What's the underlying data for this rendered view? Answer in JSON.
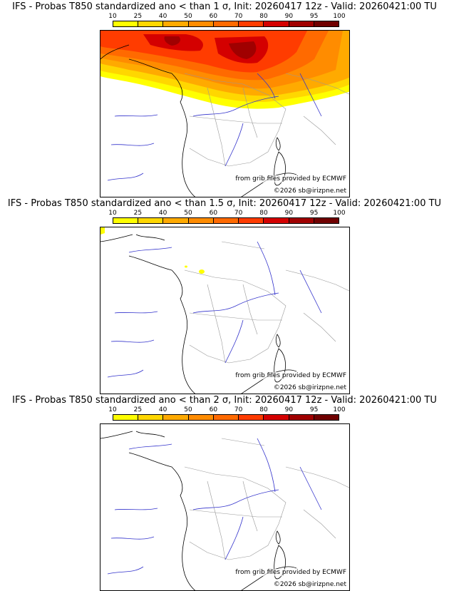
{
  "panels": [
    {
      "title": "IFS - Probas T850  standardized ano < than 1 σ, Init: 20260417 12z - Valid: 20260421:00 TU",
      "threshold_sigma": "1"
    },
    {
      "title": "IFS - Probas T850  standardized ano < than 1.5 σ, Init: 20260417 12z - Valid: 20260421:00 TU",
      "threshold_sigma": "1.5"
    },
    {
      "title": "IFS - Probas T850  standardized ano < than 2 σ, Init: 20260417 12z - Valid: 20260421:00 TU",
      "threshold_sigma": "2"
    }
  ],
  "colorbar": {
    "labels": [
      "10",
      "25",
      "40",
      "50",
      "60",
      "70",
      "80",
      "90",
      "95",
      "100"
    ],
    "colors": [
      "#ffff00",
      "#ffd700",
      "#ffaa00",
      "#ff8c00",
      "#ff6a00",
      "#ff3c00",
      "#d40000",
      "#a00000",
      "#700000"
    ]
  },
  "credits": {
    "source": "from grib files provided by ECMWF",
    "copyright": "©2026 sb@irizpne.net"
  }
}
